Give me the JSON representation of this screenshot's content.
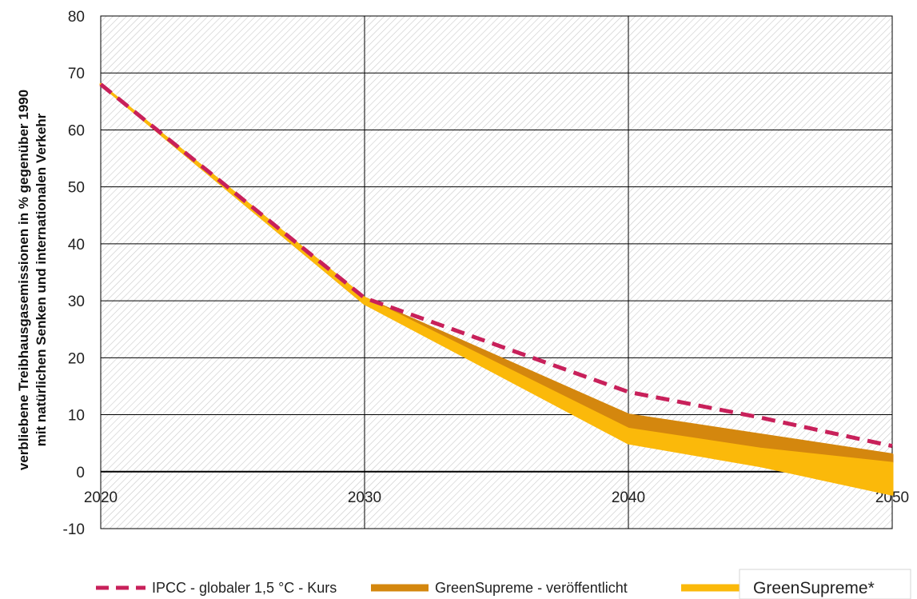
{
  "chart_data": {
    "type": "line",
    "ylabel_line1": "verbliebene Treibhausgasemissionen in % gegenüber 1990",
    "ylabel_line2": "mit natürlichen Senken und internationalen Verkehr",
    "xlabel": "",
    "title": "",
    "xlim": [
      2020,
      2050
    ],
    "ylim": [
      -10,
      80
    ],
    "x_ticks": [
      "2020",
      "2030",
      "2040",
      "2050"
    ],
    "y_ticks": [
      "80",
      "70",
      "60",
      "50",
      "40",
      "30",
      "20",
      "10",
      "0",
      "-10"
    ],
    "grid": true,
    "legend_position": "bottom",
    "series": [
      {
        "name": "IPCC - globaler 1,5 °C - Kurs",
        "style": "dashed",
        "color": "#c8205a",
        "x": [
          2020,
          2030,
          2040,
          2045,
          2050
        ],
        "y": [
          68,
          30.5,
          14,
          9.5,
          4.5
        ]
      },
      {
        "name": "GreenSupreme - veröffentlicht",
        "style": "band",
        "color": "#d4870e",
        "x": [
          2020,
          2030,
          2040,
          2045,
          2050
        ],
        "upper": [
          68,
          30.5,
          10,
          6.5,
          3
        ],
        "lower": [
          68,
          29.5,
          7,
          3.5,
          1
        ]
      },
      {
        "name": "GreenSupreme*",
        "style": "band",
        "color": "#fbb90a",
        "x": [
          2020,
          2030,
          2040,
          2045,
          2050
        ],
        "upper": [
          68,
          30.5,
          7.5,
          4,
          1.5
        ],
        "lower": [
          68,
          29.5,
          5,
          1,
          -4
        ]
      }
    ]
  }
}
